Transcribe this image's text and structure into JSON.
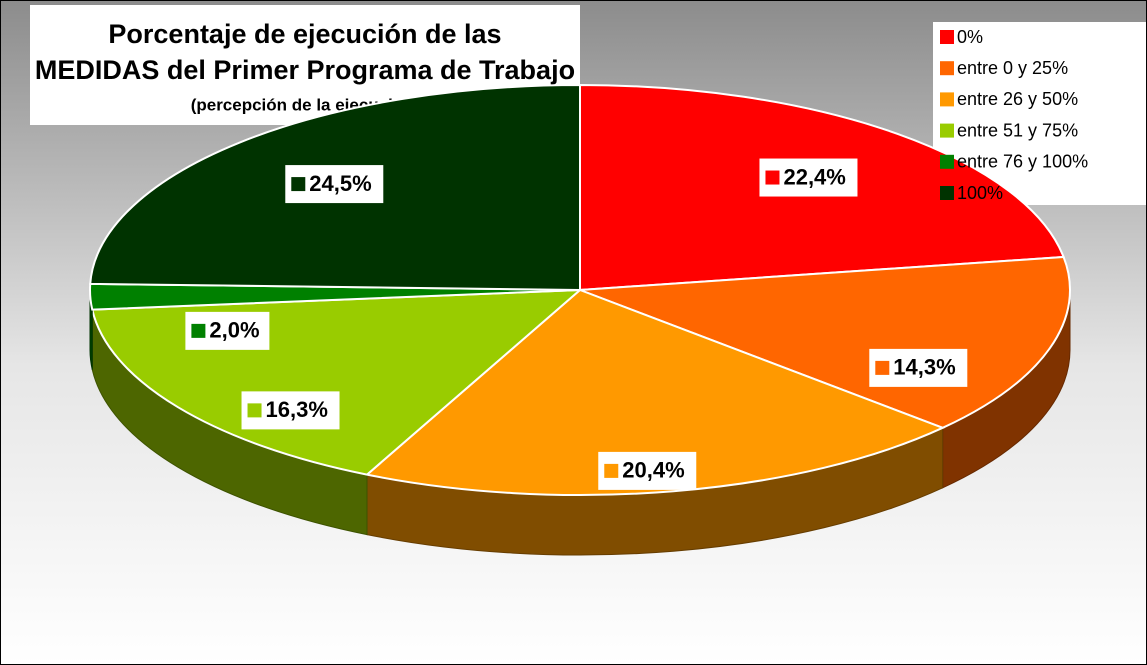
{
  "chart_data": {
    "type": "pie",
    "title": [
      "Porcentaje de ejecución de las",
      "MEDIDAS del Primer Programa de Trabajo"
    ],
    "subtitle": "(percepción de la ejecución)",
    "categories": [
      "0%",
      "entre 0 y 25%",
      "entre 26 y 50%",
      "entre 51 y 75%",
      "entre 76 y 100%",
      "100%"
    ],
    "values": [
      22.4,
      14.3,
      20.4,
      16.3,
      2.0,
      24.5
    ],
    "value_labels": [
      "22,4%",
      "14,3%",
      "20,4%",
      "16,3%",
      "2,0%",
      "24,5%"
    ],
    "colors": [
      "#ff0000",
      "#ff6600",
      "#ff9900",
      "#99cc00",
      "#008000",
      "#003300"
    ],
    "legend": "top-right"
  }
}
